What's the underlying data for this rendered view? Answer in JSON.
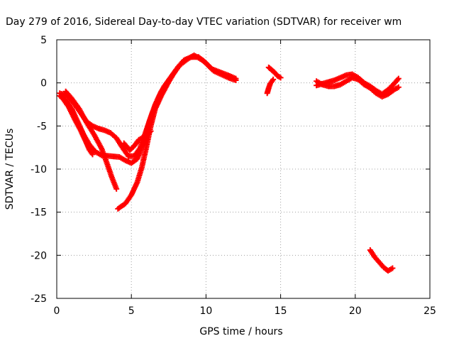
{
  "chart_data": {
    "type": "scatter",
    "title": "Day 279 of 2016, Sidereal Day-to-day VTEC variation (SDTVAR) for receiver wm",
    "xlabel": "GPS time / hours",
    "ylabel": "SDTVAR / TECUs",
    "xlim": [
      0,
      25
    ],
    "ylim": [
      -25,
      5
    ],
    "xticks": [
      0,
      5,
      10,
      15,
      20,
      25
    ],
    "yticks": [
      -25,
      -20,
      -15,
      -10,
      -5,
      0,
      5
    ],
    "grid": true,
    "marker": "plus",
    "color": "#ff0000",
    "series": [
      {
        "values": [
          [
            0.2,
            -1.5
          ],
          [
            0.6,
            -2.0
          ],
          [
            1.0,
            -3.0
          ],
          [
            1.4,
            -4.5
          ],
          [
            1.8,
            -6.0
          ],
          [
            2.2,
            -7.2
          ],
          [
            2.6,
            -8.0
          ],
          [
            3.0,
            -8.4
          ],
          [
            3.6,
            -8.5
          ],
          [
            4.2,
            -8.6
          ],
          [
            4.6,
            -9.0
          ],
          [
            5.0,
            -9.3
          ],
          [
            5.4,
            -8.8
          ],
          [
            5.8,
            -7.0
          ],
          [
            6.2,
            -4.5
          ],
          [
            6.6,
            -2.5
          ],
          [
            7.0,
            -1.0
          ],
          [
            7.5,
            0.3
          ],
          [
            8.0,
            1.5
          ],
          [
            8.5,
            2.6
          ],
          [
            9.0,
            3.0
          ],
          [
            9.5,
            3.0
          ],
          [
            10.0,
            2.3
          ],
          [
            10.5,
            1.4
          ],
          [
            11.0,
            1.0
          ],
          [
            11.5,
            0.6
          ],
          [
            12.0,
            0.3
          ]
        ]
      },
      {
        "values": [
          [
            0.2,
            -1.2
          ],
          [
            0.7,
            -1.5
          ],
          [
            1.2,
            -2.5
          ],
          [
            1.6,
            -3.5
          ],
          [
            2.0,
            -4.5
          ],
          [
            2.4,
            -5.0
          ],
          [
            2.8,
            -5.3
          ],
          [
            3.2,
            -5.5
          ],
          [
            3.6,
            -5.8
          ],
          [
            4.0,
            -6.4
          ],
          [
            4.4,
            -7.5
          ],
          [
            4.8,
            -8.5
          ],
          [
            5.2,
            -8.5
          ],
          [
            5.6,
            -7.5
          ],
          [
            6.0,
            -5.5
          ],
          [
            6.4,
            -3.5
          ],
          [
            6.8,
            -1.8
          ],
          [
            7.2,
            -0.4
          ],
          [
            7.7,
            0.8
          ],
          [
            8.2,
            2.0
          ],
          [
            8.8,
            2.8
          ],
          [
            9.2,
            3.2
          ],
          [
            9.8,
            2.6
          ],
          [
            10.4,
            1.6
          ],
          [
            11.0,
            1.2
          ],
          [
            11.6,
            0.8
          ],
          [
            12.0,
            0.5
          ]
        ]
      },
      {
        "values": [
          [
            0.4,
            -1.8
          ],
          [
            0.8,
            -2.8
          ],
          [
            1.2,
            -4.2
          ],
          [
            1.6,
            -5.5
          ],
          [
            2.0,
            -7.0
          ],
          [
            2.2,
            -7.8
          ],
          [
            2.4,
            -8.3
          ]
        ]
      },
      {
        "values": [
          [
            0.6,
            -1.0
          ],
          [
            1.0,
            -1.8
          ],
          [
            1.5,
            -3.0
          ],
          [
            2.0,
            -4.6
          ],
          [
            2.5,
            -6.0
          ],
          [
            3.0,
            -7.6
          ],
          [
            3.4,
            -9.5
          ],
          [
            3.7,
            -11.0
          ],
          [
            4.0,
            -12.3
          ]
        ]
      },
      {
        "values": [
          [
            4.1,
            -14.6
          ],
          [
            4.6,
            -14.0
          ],
          [
            5.0,
            -13.0
          ],
          [
            5.4,
            -11.5
          ],
          [
            5.7,
            -9.8
          ],
          [
            6.0,
            -7.5
          ],
          [
            6.3,
            -5.0
          ],
          [
            6.6,
            -3.0
          ],
          [
            7.0,
            -1.5
          ],
          [
            7.4,
            -0.2
          ],
          [
            7.8,
            1.0
          ],
          [
            8.2,
            2.0
          ],
          [
            8.6,
            2.7
          ]
        ]
      },
      {
        "values": [
          [
            4.5,
            -7.0
          ],
          [
            4.9,
            -7.8
          ],
          [
            5.2,
            -7.3
          ],
          [
            5.5,
            -6.6
          ],
          [
            5.9,
            -6.2
          ],
          [
            6.3,
            -5.6
          ]
        ]
      },
      {
        "values": [
          [
            14.2,
            1.8
          ],
          [
            14.4,
            1.5
          ],
          [
            14.6,
            1.2
          ],
          [
            14.8,
            0.8
          ],
          [
            15.0,
            0.6
          ]
        ]
      },
      {
        "values": [
          [
            14.1,
            -1.2
          ],
          [
            14.2,
            -0.6
          ],
          [
            14.3,
            -0.1
          ],
          [
            14.5,
            0.4
          ]
        ]
      },
      {
        "values": [
          [
            17.4,
            0.2
          ],
          [
            17.8,
            -0.2
          ],
          [
            18.2,
            -0.4
          ],
          [
            18.6,
            -0.4
          ],
          [
            19.0,
            -0.2
          ],
          [
            19.4,
            0.2
          ],
          [
            19.8,
            0.6
          ],
          [
            20.2,
            0.4
          ],
          [
            20.6,
            -0.2
          ],
          [
            21.0,
            -0.6
          ],
          [
            21.4,
            -1.2
          ],
          [
            21.8,
            -1.6
          ],
          [
            22.2,
            -1.3
          ],
          [
            22.6,
            -0.8
          ],
          [
            22.9,
            -0.5
          ]
        ]
      },
      {
        "values": [
          [
            17.4,
            -0.3
          ],
          [
            17.8,
            -0.1
          ],
          [
            18.2,
            0.1
          ],
          [
            18.6,
            0.3
          ],
          [
            19.0,
            0.6
          ],
          [
            19.4,
            0.9
          ],
          [
            19.8,
            1.0
          ],
          [
            20.2,
            0.6
          ],
          [
            20.6,
            0.0
          ],
          [
            21.0,
            -0.4
          ],
          [
            21.4,
            -0.9
          ],
          [
            21.8,
            -1.3
          ],
          [
            22.2,
            -0.8
          ],
          [
            22.6,
            -0.1
          ],
          [
            22.9,
            0.5
          ]
        ]
      },
      {
        "values": [
          [
            21.0,
            -19.4
          ],
          [
            21.3,
            -20.2
          ],
          [
            21.6,
            -20.8
          ],
          [
            21.9,
            -21.4
          ],
          [
            22.2,
            -21.8
          ],
          [
            22.5,
            -21.5
          ]
        ]
      }
    ]
  }
}
